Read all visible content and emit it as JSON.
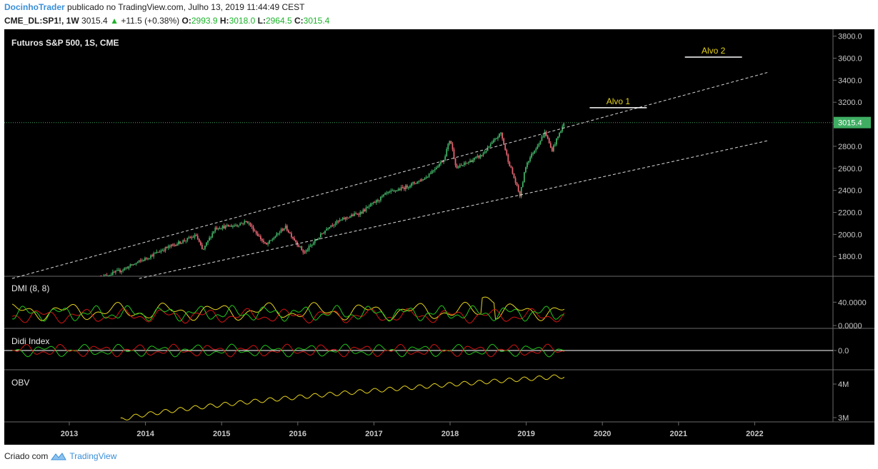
{
  "header": {
    "author": "DocinhoTrader",
    "published": "publicado no TradingView.com, Julho 13, 2019 11:44:49 CEST",
    "symbol": "CME_DL:SP1!, 1W",
    "last": "3015.4",
    "change": "+11.5 (+0.38%)",
    "open_label": "O:",
    "open": "2993.9",
    "high_label": "H:",
    "high": "3018.0",
    "low_label": "L:",
    "low": "2964.5",
    "close_label": "C:",
    "close": "3015.4"
  },
  "footer": {
    "created_with": "Criado com",
    "brand": "TradingView"
  },
  "colors": {
    "background": "#000000",
    "up": "#3fae63",
    "down": "#e46471",
    "price_tag": "#3fae63",
    "yellow": "#e6d21c",
    "red": "#d21414",
    "green": "#22c41c",
    "axis_text": "#c8c8c8",
    "dashed": "#d8d8d8"
  },
  "chart_data": [
    {
      "type": "candlestick",
      "title": "Futuros S&P 500, 1S, CME",
      "price_tag": "3015.4",
      "x_ticks": [
        "2013",
        "2014",
        "2015",
        "2016",
        "2017",
        "2018",
        "2019",
        "2020",
        "2021",
        "2022"
      ],
      "y_ticks": [
        "1800.0",
        "2000.0",
        "2200.0",
        "2400.0",
        "2600.0",
        "2800.0",
        "3000.0",
        "3200.0",
        "3400.0",
        "3600.0",
        "3800.0"
      ],
      "ylim": [
        1620,
        3830
      ],
      "series": [
        {
          "name": "close_anchors",
          "points": [
            [
              "2013-06",
              1610
            ],
            [
              "2013-09",
              1670
            ],
            [
              "2014-01",
              1780
            ],
            [
              "2014-04",
              1870
            ],
            [
              "2014-09",
              1990
            ],
            [
              "2014-10",
              1850
            ],
            [
              "2014-12",
              2060
            ],
            [
              "2015-03",
              2080
            ],
            [
              "2015-05",
              2120
            ],
            [
              "2015-08",
              1900
            ],
            [
              "2015-11",
              2070
            ],
            [
              "2016-02",
              1830
            ],
            [
              "2016-06",
              2080
            ],
            [
              "2016-09",
              2160
            ],
            [
              "2016-11",
              2200
            ],
            [
              "2017-03",
              2370
            ],
            [
              "2017-06",
              2430
            ],
            [
              "2017-09",
              2510
            ],
            [
              "2017-12",
              2680
            ],
            [
              "2018-01",
              2870
            ],
            [
              "2018-02",
              2600
            ],
            [
              "2018-06",
              2720
            ],
            [
              "2018-09",
              2920
            ],
            [
              "2018-10",
              2700
            ],
            [
              "2018-12",
              2350
            ],
            [
              "2019-01",
              2640
            ],
            [
              "2019-04",
              2930
            ],
            [
              "2019-05",
              2760
            ],
            [
              "2019-07",
              3015.4
            ]
          ]
        }
      ],
      "trendlines": [
        {
          "type": "upper-channel",
          "points": [
            [
              "2012-04",
              1600
            ],
            [
              "2022-03",
              3470
            ]
          ]
        },
        {
          "type": "lower-channel",
          "points": [
            [
              "2013-12",
              1600
            ],
            [
              "2022-03",
              2850
            ]
          ]
        }
      ],
      "targets": [
        {
          "label": "Alvo 1",
          "price": 3150,
          "from": "2019-11",
          "to": "2020-08"
        },
        {
          "label": "Alvo 2",
          "price": 3610,
          "from": "2021-02",
          "to": "2021-11"
        }
      ],
      "grid": false,
      "legend": "none"
    },
    {
      "type": "line",
      "title": "DMI (8, 8)",
      "y_ticks": [
        "40.0000",
        "0.0000"
      ],
      "series": [
        {
          "color": "yellow"
        },
        {
          "color": "red"
        },
        {
          "color": "green"
        }
      ]
    },
    {
      "type": "line",
      "title": "Didi Index",
      "y_ticks": [
        "0.0"
      ],
      "series": [
        {
          "color": "red"
        },
        {
          "color": "green"
        }
      ]
    },
    {
      "type": "line",
      "title": "OBV",
      "y_ticks": [
        "4M",
        "3M"
      ],
      "series": [
        {
          "color": "yellow"
        }
      ]
    }
  ]
}
